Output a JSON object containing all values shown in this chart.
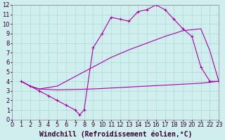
{
  "line1_x": [
    1,
    2,
    3,
    4,
    5,
    6,
    7,
    7.5,
    8,
    9,
    10,
    11,
    12,
    13,
    14,
    15,
    16,
    17,
    18,
    19,
    20,
    21,
    22,
    23
  ],
  "line1_y": [
    4.0,
    3.5,
    3.0,
    2.5,
    2.0,
    1.5,
    1.0,
    0.5,
    1.0,
    7.5,
    9.0,
    10.7,
    10.5,
    10.3,
    11.3,
    11.5,
    12.0,
    11.5,
    10.5,
    9.5,
    8.7,
    5.5,
    4.0,
    4.0
  ],
  "line2_x": [
    1,
    2,
    3,
    5,
    9,
    11,
    13,
    15,
    17,
    19,
    21,
    23
  ],
  "line2_y": [
    4.0,
    3.5,
    3.2,
    3.1,
    3.2,
    3.3,
    3.4,
    3.5,
    3.6,
    3.7,
    3.8,
    4.0
  ],
  "line3_x": [
    1,
    2,
    3,
    5,
    9,
    11,
    13,
    15,
    17,
    19,
    21,
    22,
    23
  ],
  "line3_y": [
    4.0,
    3.5,
    3.2,
    3.5,
    5.5,
    6.5,
    7.3,
    8.0,
    8.7,
    9.3,
    9.5,
    7.2,
    4.0
  ],
  "line_color": "#aa00aa",
  "bg_color": "#d0eeee",
  "grid_color": "#b0dddd",
  "xlabel": "Windchill (Refroidissement éolien,°C)",
  "xlim": [
    0,
    23
  ],
  "ylim": [
    0,
    12
  ],
  "xticks": [
    0,
    1,
    2,
    3,
    4,
    5,
    6,
    7,
    8,
    9,
    10,
    11,
    12,
    13,
    14,
    15,
    16,
    17,
    18,
    19,
    20,
    21,
    22,
    23
  ],
  "yticks": [
    0,
    1,
    2,
    3,
    4,
    5,
    6,
    7,
    8,
    9,
    10,
    11,
    12
  ],
  "font_size": 6,
  "marker": "+",
  "marker_size": 3,
  "linewidth": 0.8
}
